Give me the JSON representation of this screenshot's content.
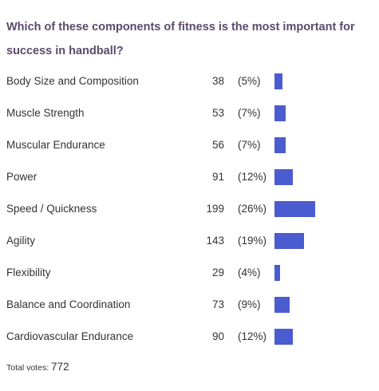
{
  "question": "Which of these components of fitness is the most important for success in handball?",
  "colors": {
    "bar": "#4a5ccf",
    "question": "#5b4a6b",
    "text": "#333333"
  },
  "chart_data": {
    "type": "bar",
    "orientation": "horizontal",
    "title": "Which of these components of fitness is the most important for success in handball?",
    "categories": [
      "Body Size and Composition",
      "Muscle Strength",
      "Muscular Endurance",
      "Power",
      "Speed / Quickness",
      "Agility",
      "Flexibility",
      "Balance and Coordination",
      "Cardiovascular Endurance"
    ],
    "values": [
      38,
      53,
      56,
      91,
      199,
      143,
      29,
      73,
      90
    ],
    "percent_labels": [
      "(5%)",
      "(7%)",
      "(7%)",
      "(12%)",
      "(26%)",
      "(19%)",
      "(4%)",
      "(9%)",
      "(12%)"
    ],
    "xlabel": "",
    "ylabel": "",
    "grid": false,
    "legend": "none"
  },
  "total": {
    "label": "Total votes:",
    "value": "772"
  }
}
